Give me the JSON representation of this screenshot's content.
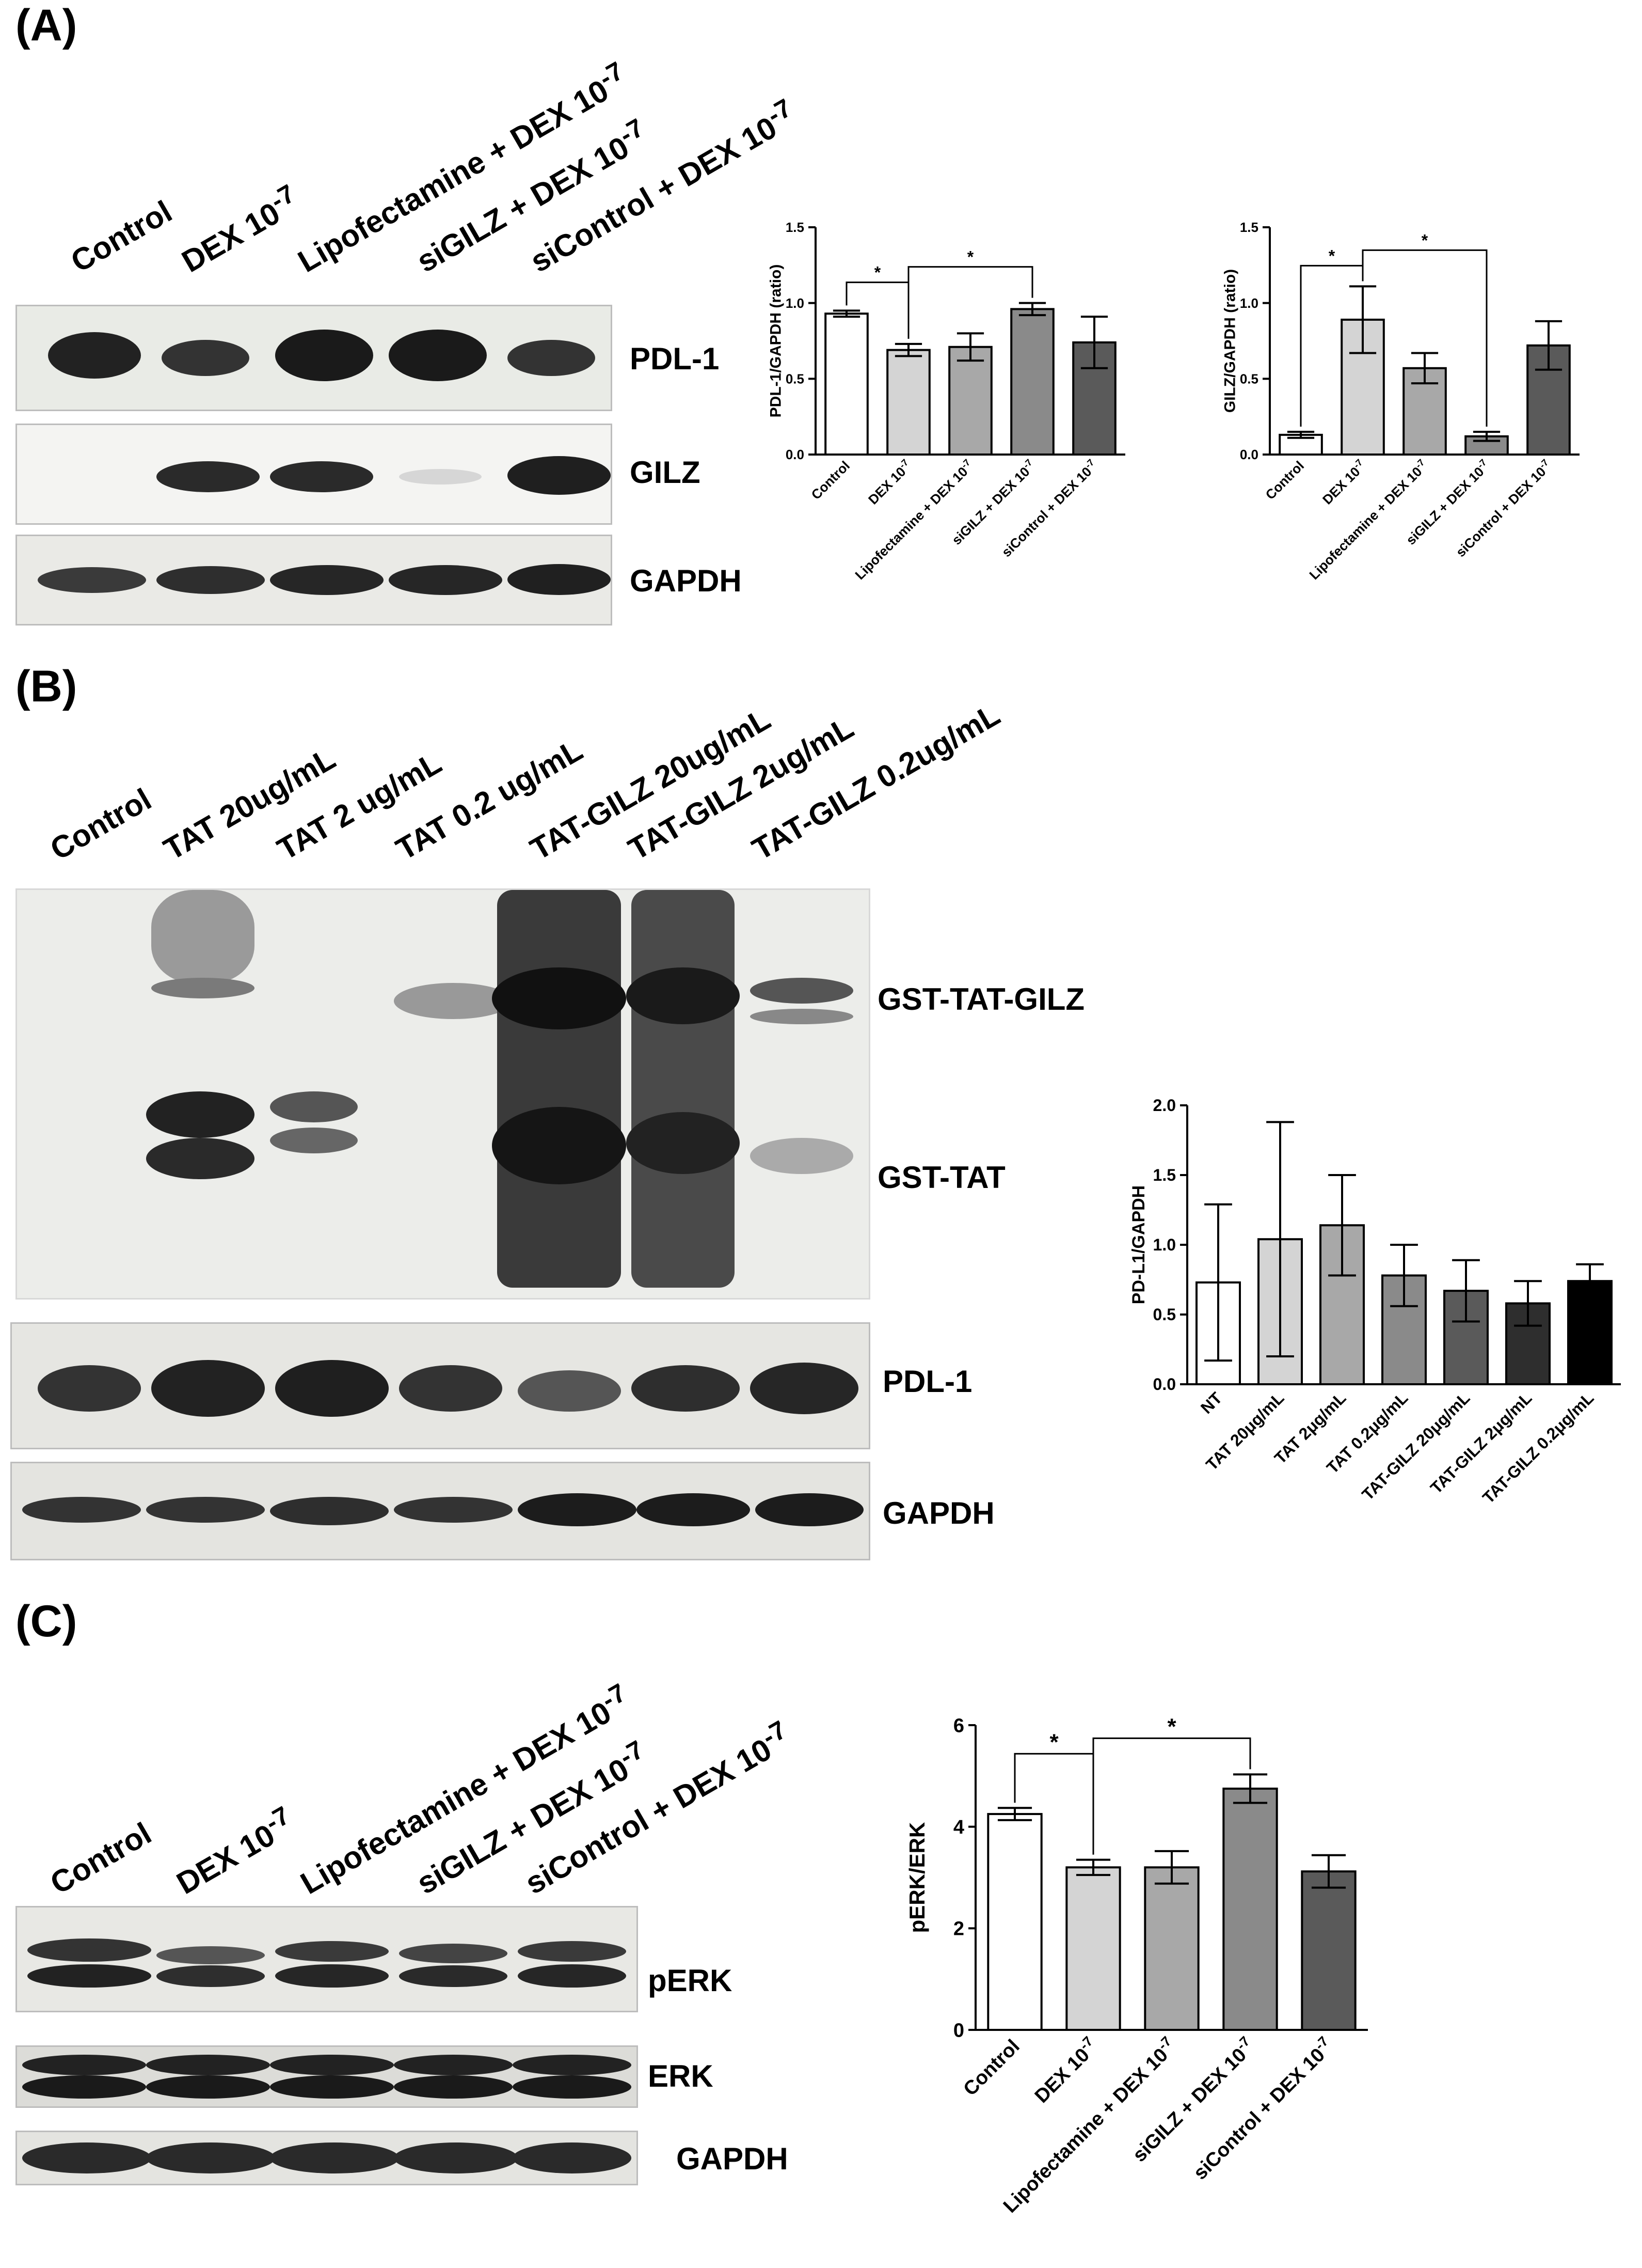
{
  "panels": [
    "(A)",
    "(B)",
    "(C)"
  ],
  "panelA": {
    "lanes": [
      "Control",
      "DEX 10",
      "Lipofectamine + DEX 10",
      "siGILZ + DEX 10",
      "siControl + DEX 10"
    ],
    "lane_sup": [
      "",
      "-7",
      "-7",
      "-7",
      "-7"
    ],
    "blots": [
      "PDL-1",
      "GILZ",
      "GAPDH"
    ],
    "band_intensity": {
      "PDL-1": [
        0.82,
        0.62,
        0.86,
        0.88,
        0.62
      ],
      "GILZ": [
        0.0,
        0.82,
        0.8,
        0.1,
        0.9
      ],
      "GAPDH": [
        0.65,
        0.72,
        0.75,
        0.75,
        0.8
      ]
    }
  },
  "panelB": {
    "lanes": [
      "Control",
      "TAT 20ug/mL",
      "TAT 2 ug/mL",
      "TAT 0.2 ug/mL",
      "TAT-GILZ 20ug/mL",
      "TAT-GILZ 2ug/mL",
      "TAT-GILZ 0.2ug/mL"
    ],
    "blots": [
      "GST-TAT-GILZ",
      "GST-TAT",
      "PDL-1",
      "GAPDH"
    ]
  },
  "panelC": {
    "lanes": [
      "Control",
      "DEX 10",
      "Lipofectamine + DEX 10",
      "siGILZ + DEX 10",
      "siControl + DEX 10"
    ],
    "lane_sup": [
      "",
      "-7",
      "-7",
      "-7",
      "-7"
    ],
    "blots": [
      "pERK",
      "ERK",
      "GAPDH"
    ]
  },
  "chart_data": [
    {
      "type": "bar",
      "panel": "(A)",
      "categories": [
        "Control",
        "DEX 10",
        "Lipofectamine + DEX 10",
        "siGILZ + DEX 10",
        "siControl + DEX 10"
      ],
      "category_sup": [
        "",
        "-7",
        "-7",
        "-7",
        "-7"
      ],
      "values": [
        0.93,
        0.69,
        0.71,
        0.96,
        0.74
      ],
      "errors": [
        0.02,
        0.04,
        0.09,
        0.04,
        0.17
      ],
      "colors": [
        "#ffffff",
        "#d4d4d4",
        "#a8a8a8",
        "#8a8a8a",
        "#5a5a5a"
      ],
      "ylabel": "PDL-1/GAPDH (ratio)",
      "ylim": [
        0,
        1.5
      ],
      "yticks": [
        "0.0",
        "0.5",
        "1.0",
        "1.5"
      ],
      "yticks_values": [
        0,
        0.5,
        1.0,
        1.5
      ],
      "significance": [
        {
          "from": 0,
          "to": 1,
          "label": "*"
        },
        {
          "from": 1,
          "to": 3,
          "label": "*"
        }
      ]
    },
    {
      "type": "bar",
      "panel": "(A)",
      "categories": [
        "Control",
        "DEX 10",
        "Lipofectamine + DEX 10",
        "siGILZ + DEX 10",
        "siControl + DEX 10"
      ],
      "category_sup": [
        "",
        "-7",
        "-7",
        "-7",
        "-7"
      ],
      "values": [
        0.13,
        0.89,
        0.57,
        0.12,
        0.72
      ],
      "errors": [
        0.02,
        0.22,
        0.1,
        0.03,
        0.16
      ],
      "colors": [
        "#ffffff",
        "#d4d4d4",
        "#a8a8a8",
        "#8a8a8a",
        "#5a5a5a"
      ],
      "ylabel": "GILZ/GAPDH (ratio)",
      "ylim": [
        0,
        1.5
      ],
      "yticks": [
        "0.0",
        "0.5",
        "1.0",
        "1.5"
      ],
      "yticks_values": [
        0,
        0.5,
        1.0,
        1.5
      ],
      "significance": [
        {
          "from": 0,
          "to": 1,
          "label": "*"
        },
        {
          "from": 1,
          "to": 3,
          "label": "*"
        }
      ]
    },
    {
      "type": "bar",
      "panel": "(B)",
      "categories": [
        "NT",
        "TAT 20μg/mL",
        "TAT 2μg/mL",
        "TAT 0.2μg/mL",
        "TAT-GILZ 20μg/mL",
        "TAT-GILZ 2μg/mL",
        "TAT-GILZ 0.2μg/mL"
      ],
      "values": [
        0.73,
        1.04,
        1.14,
        0.78,
        0.67,
        0.58,
        0.74
      ],
      "errors": [
        0.56,
        0.84,
        0.36,
        0.22,
        0.22,
        0.16,
        0.12
      ],
      "colors": [
        "#ffffff",
        "#d4d4d4",
        "#a8a8a8",
        "#8a8a8a",
        "#5a5a5a",
        "#2e2e2e",
        "#000000"
      ],
      "ylabel": "PD-L1/GAPDH",
      "ylim": [
        0,
        2.0
      ],
      "yticks": [
        "0.0",
        "0.5",
        "1.0",
        "1.5",
        "2.0"
      ],
      "yticks_values": [
        0,
        0.5,
        1.0,
        1.5,
        2.0
      ],
      "significance": []
    },
    {
      "type": "bar",
      "panel": "(C)",
      "categories": [
        "Control",
        "DEX 10",
        "Lipofectamine + DEX 10",
        "siGILZ + DEX 10",
        "siControl + DEX 10"
      ],
      "category_sup": [
        "",
        "-7",
        "-7",
        "-7",
        "-7"
      ],
      "values": [
        4.25,
        3.2,
        3.2,
        4.75,
        3.12
      ],
      "errors": [
        0.12,
        0.15,
        0.32,
        0.28,
        0.32
      ],
      "colors": [
        "#ffffff",
        "#d4d4d4",
        "#a8a8a8",
        "#8a8a8a",
        "#5a5a5a"
      ],
      "ylabel": "pERK/ERK",
      "ylim": [
        0,
        6
      ],
      "yticks": [
        "0",
        "2",
        "4",
        "6"
      ],
      "yticks_values": [
        0,
        2,
        4,
        6
      ],
      "significance": [
        {
          "from": 0,
          "to": 1,
          "label": "*"
        },
        {
          "from": 1,
          "to": 3,
          "label": "*"
        }
      ]
    }
  ]
}
